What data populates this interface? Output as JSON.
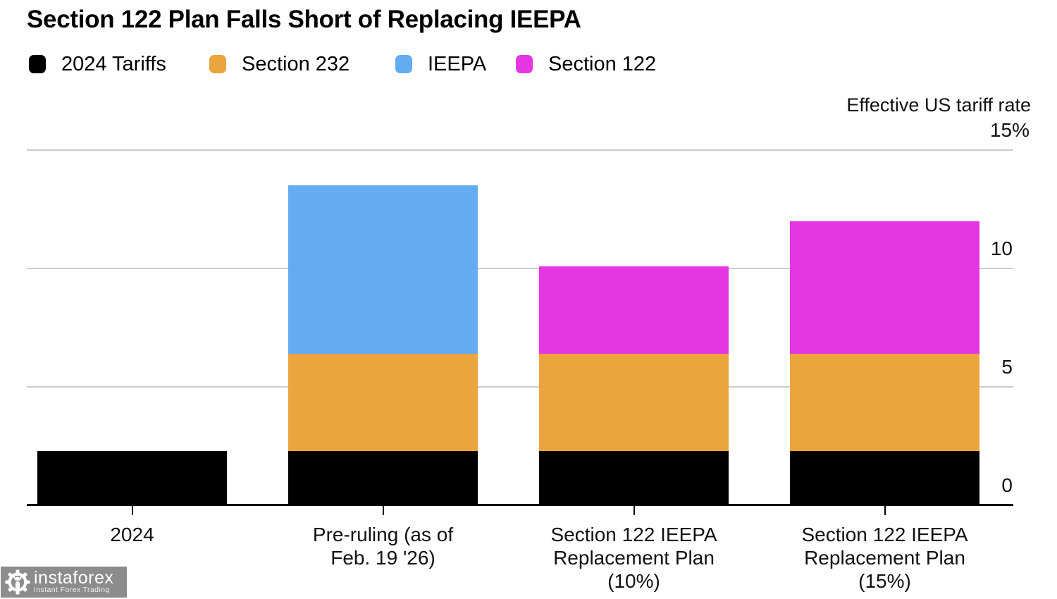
{
  "chart_data": {
    "type": "bar",
    "stacked": true,
    "title": "Section 122 Plan Falls Short of Replacing IEEPA",
    "ylabel": "Effective US tariff rate",
    "unit": "%",
    "ylim": [
      0,
      15
    ],
    "yticks": [
      {
        "value": 15,
        "label": "15%"
      },
      {
        "value": 10,
        "label": "10"
      },
      {
        "value": 5,
        "label": "5"
      },
      {
        "value": 0,
        "label": "0"
      }
    ],
    "grid": true,
    "legend_position": "top",
    "categories": [
      "2024",
      "Pre-ruling (as of Feb. 19 '26)",
      "Section 122 IEEPA Replacement Plan (10%)",
      "Section 122 IEEPA Replacement Plan (15%)"
    ],
    "category_lines": [
      [
        "2024"
      ],
      [
        "Pre-ruling (as of",
        "Feb. 19 '26)"
      ],
      [
        "Section 122 IEEPA",
        "Replacement Plan",
        "(10%)"
      ],
      [
        "Section 122 IEEPA",
        "Replacement Plan",
        "(15%)"
      ]
    ],
    "series": [
      {
        "name": "2024 Tariffs",
        "color": "#000000",
        "values": [
          2.3,
          2.3,
          2.3,
          2.3
        ]
      },
      {
        "name": "Section 232",
        "color": "#eca43e",
        "values": [
          0,
          4.1,
          4.1,
          4.1
        ]
      },
      {
        "name": "IEEPA",
        "color": "#64abf0",
        "values": [
          0,
          7.1,
          0,
          0
        ]
      },
      {
        "name": "Section 122",
        "color": "#e636e4",
        "values": [
          0,
          0,
          3.7,
          5.6
        ]
      }
    ],
    "totals": [
      2.3,
      13.5,
      10.1,
      12.0
    ]
  },
  "watermark": {
    "brand": "instaforex",
    "tagline": "Instant Forex Trading"
  }
}
